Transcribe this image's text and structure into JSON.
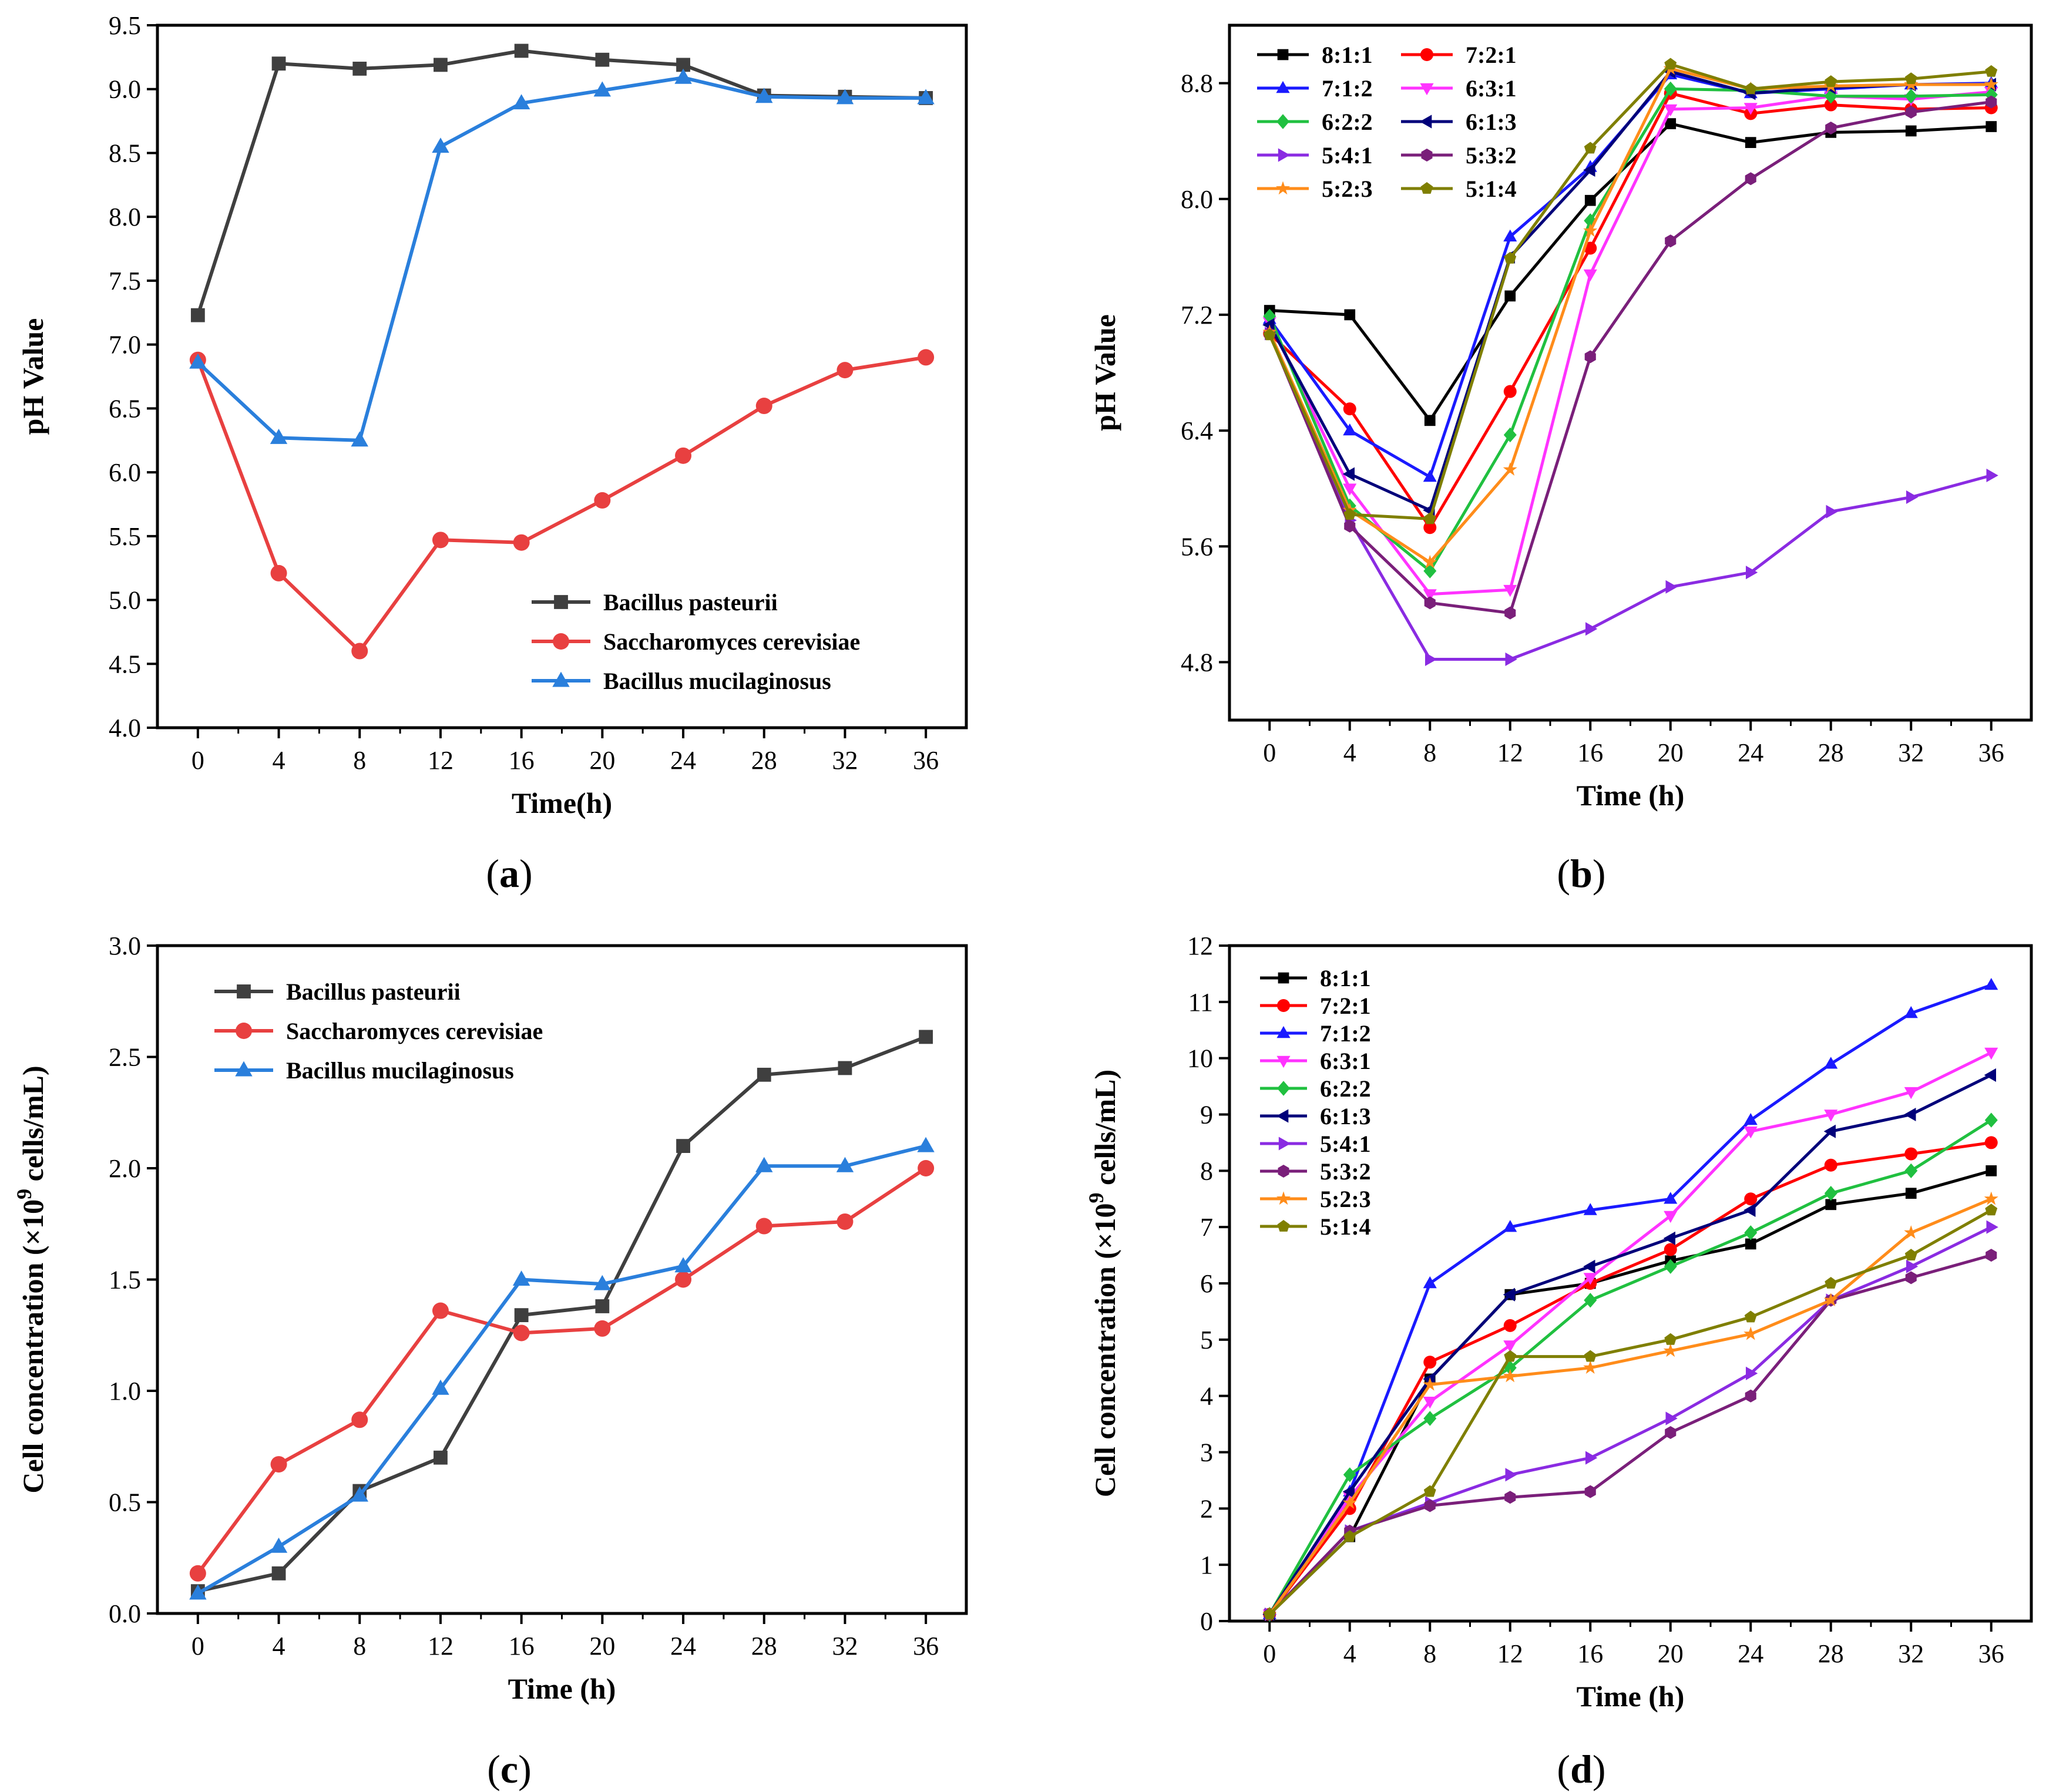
{
  "figure": {
    "panels": [
      {
        "label_prefix": "(",
        "label": "a",
        "label_suffix": ")"
      },
      {
        "label_prefix": "(",
        "label": "b",
        "label_suffix": ")"
      },
      {
        "label_prefix": "(",
        "label": "c",
        "label_suffix": ")"
      },
      {
        "label_prefix": "(",
        "label": "d",
        "label_suffix": ")"
      }
    ]
  },
  "chart_data": [
    {
      "id": "a",
      "type": "line",
      "title": "",
      "xlabel": "Time(h)",
      "ylabel": "pH Value",
      "ylabel_suffix": "",
      "x": [
        0,
        4,
        8,
        12,
        16,
        20,
        24,
        28,
        32,
        36
      ],
      "xticks": [
        "0",
        "4",
        "8",
        "12",
        "16",
        "20",
        "24",
        "28",
        "32",
        "36"
      ],
      "yticks": [
        "4.0",
        "4.5",
        "5.0",
        "5.5",
        "6.0",
        "6.5",
        "7.0",
        "7.5",
        "8.0",
        "8.5",
        "9.0",
        "9.5"
      ],
      "xlim": [
        -2,
        38
      ],
      "ylim": [
        4.0,
        9.5
      ],
      "legend": "bottom-right",
      "series": [
        {
          "name": "Bacillus pasteurii",
          "color": "#3f3f3f",
          "marker": "square",
          "values": [
            7.23,
            9.2,
            9.16,
            9.19,
            9.3,
            9.23,
            9.19,
            8.95,
            8.94,
            8.93
          ]
        },
        {
          "name": "Saccharomyces cerevisiae",
          "color": "#e84040",
          "marker": "circle",
          "values": [
            6.88,
            5.21,
            4.6,
            5.47,
            5.45,
            5.78,
            6.13,
            6.52,
            6.8,
            6.9
          ]
        },
        {
          "name": "Bacillus mucilaginosus",
          "color": "#2a7fdc",
          "marker": "triangle-up",
          "values": [
            6.86,
            6.27,
            6.25,
            8.55,
            8.89,
            8.99,
            9.09,
            8.94,
            8.93,
            8.93
          ]
        }
      ]
    },
    {
      "id": "b",
      "type": "line",
      "title": "",
      "xlabel": "Time (h)",
      "ylabel": "pH Value",
      "ylabel_suffix": "",
      "x": [
        0,
        4,
        8,
        12,
        16,
        20,
        24,
        28,
        32,
        36
      ],
      "xticks": [
        "0",
        "4",
        "8",
        "12",
        "16",
        "20",
        "24",
        "28",
        "32",
        "36"
      ],
      "yticks": [
        "4.8",
        "5.6",
        "6.4",
        "7.2",
        "8.0",
        "8.8"
      ],
      "ytick_values": [
        4.8,
        5.6,
        6.4,
        7.2,
        8.0,
        8.8
      ],
      "xlim": [
        -2,
        38
      ],
      "ylim": [
        4.4,
        9.2
      ],
      "legend": "top-left",
      "series": [
        {
          "name": "8:1:1",
          "color": "#000000",
          "marker": "square",
          "values": [
            7.23,
            7.2,
            6.47,
            7.33,
            7.99,
            8.52,
            8.39,
            8.46,
            8.47,
            8.5
          ]
        },
        {
          "name": "7:2:1",
          "color": "#ff0000",
          "marker": "circle",
          "values": [
            7.07,
            6.55,
            5.73,
            6.67,
            7.66,
            8.73,
            8.59,
            8.65,
            8.62,
            8.63
          ]
        },
        {
          "name": "7:1:2",
          "color": "#1a1aff",
          "marker": "triangle-up",
          "values": [
            7.17,
            6.4,
            6.08,
            7.74,
            8.22,
            8.86,
            8.73,
            8.76,
            8.79,
            8.8
          ]
        },
        {
          "name": "6:3:1",
          "color": "#ff33ff",
          "marker": "triangle-down",
          "values": [
            7.15,
            6.0,
            5.27,
            5.3,
            7.48,
            8.62,
            8.63,
            8.71,
            8.69,
            8.74
          ]
        },
        {
          "name": "6:2:2",
          "color": "#20c040",
          "marker": "diamond",
          "values": [
            7.19,
            5.88,
            5.43,
            6.37,
            7.85,
            8.76,
            8.75,
            8.71,
            8.71,
            8.72
          ]
        },
        {
          "name": "6:1:3",
          "color": "#00007a",
          "marker": "triangle-left",
          "values": [
            7.13,
            6.1,
            5.85,
            7.6,
            8.2,
            8.88,
            8.73,
            8.77,
            8.79,
            8.79
          ]
        },
        {
          "name": "5:4:1",
          "color": "#8a2be2",
          "marker": "triangle-right",
          "values": [
            7.07,
            5.78,
            4.82,
            4.82,
            5.03,
            5.32,
            5.42,
            5.84,
            5.94,
            6.09
          ]
        },
        {
          "name": "5:3:2",
          "color": "#7a1f7a",
          "marker": "hexagon",
          "values": [
            7.07,
            5.74,
            5.21,
            5.14,
            6.91,
            7.71,
            8.14,
            8.49,
            8.6,
            8.67
          ]
        },
        {
          "name": "5:2:3",
          "color": "#ff8c1a",
          "marker": "star",
          "values": [
            7.08,
            5.85,
            5.49,
            6.13,
            7.78,
            8.9,
            8.76,
            8.78,
            8.79,
            8.79
          ]
        },
        {
          "name": "5:1:4",
          "color": "#7f7f00",
          "marker": "pentagon",
          "values": [
            7.06,
            5.82,
            5.79,
            7.59,
            8.35,
            8.93,
            8.76,
            8.81,
            8.83,
            8.88
          ]
        }
      ]
    },
    {
      "id": "c",
      "type": "line",
      "title": "",
      "xlabel": "Time (h)",
      "ylabel": "Cell concentration  (×10",
      "ylabel_sup": "9",
      "ylabel_suffix": " cells/mL)",
      "x": [
        0,
        4,
        8,
        12,
        16,
        20,
        24,
        28,
        32,
        36
      ],
      "xticks": [
        "0",
        "4",
        "8",
        "12",
        "16",
        "20",
        "24",
        "28",
        "32",
        "36"
      ],
      "yticks": [
        "0.0",
        "0.5",
        "1.0",
        "1.5",
        "2.0",
        "2.5",
        "3.0"
      ],
      "xlim": [
        -2,
        38
      ],
      "ylim": [
        0.0,
        3.0
      ],
      "legend": "top-left",
      "series": [
        {
          "name": "Bacillus pasteurii",
          "color": "#3f3f3f",
          "marker": "square",
          "values": [
            0.1,
            0.18,
            0.55,
            0.7,
            1.34,
            1.38,
            2.1,
            2.42,
            2.45,
            2.59
          ]
        },
        {
          "name": "Saccharomyces cerevisiae",
          "color": "#e84040",
          "marker": "circle",
          "values": [
            0.18,
            0.67,
            0.87,
            1.36,
            1.26,
            1.28,
            1.5,
            1.74,
            1.76,
            2.0
          ]
        },
        {
          "name": "Bacillus mucilaginosus",
          "color": "#2a7fdc",
          "marker": "triangle-up",
          "values": [
            0.09,
            0.3,
            0.53,
            1.01,
            1.5,
            1.48,
            1.56,
            2.01,
            2.01,
            2.1
          ]
        }
      ]
    },
    {
      "id": "d",
      "type": "line",
      "title": "",
      "xlabel": "Time (h)",
      "ylabel": "Cell concentration (×10",
      "ylabel_sup": "9",
      "ylabel_suffix": " cells/mL)",
      "x": [
        0,
        4,
        8,
        12,
        16,
        20,
        24,
        28,
        32,
        36
      ],
      "xticks": [
        "0",
        "4",
        "8",
        "12",
        "16",
        "20",
        "24",
        "28",
        "32",
        "36"
      ],
      "yticks": [
        "0",
        "1",
        "2",
        "3",
        "4",
        "5",
        "6",
        "7",
        "8",
        "9",
        "10",
        "11",
        "12"
      ],
      "xlim": [
        -2,
        38
      ],
      "ylim": [
        0,
        12
      ],
      "legend": "top-left",
      "series": [
        {
          "name": "8:1:1",
          "color": "#000000",
          "marker": "square",
          "values": [
            0.12,
            1.5,
            4.3,
            5.8,
            6.0,
            6.4,
            6.7,
            7.4,
            7.6,
            8.0
          ]
        },
        {
          "name": "7:2:1",
          "color": "#ff0000",
          "marker": "circle",
          "values": [
            0.12,
            2.0,
            4.6,
            5.25,
            6.0,
            6.6,
            7.5,
            8.1,
            8.3,
            8.5
          ]
        },
        {
          "name": "7:1:2",
          "color": "#1a1aff",
          "marker": "triangle-up",
          "values": [
            0.12,
            2.3,
            6.0,
            7.0,
            7.3,
            7.5,
            8.9,
            9.9,
            10.8,
            11.3
          ]
        },
        {
          "name": "6:3:1",
          "color": "#ff33ff",
          "marker": "triangle-down",
          "values": [
            0.12,
            2.2,
            3.9,
            4.9,
            6.1,
            7.2,
            8.7,
            9.0,
            9.4,
            10.1
          ]
        },
        {
          "name": "6:2:2",
          "color": "#20c040",
          "marker": "diamond",
          "values": [
            0.12,
            2.6,
            3.6,
            4.5,
            5.7,
            6.3,
            6.9,
            7.6,
            8.0,
            8.9
          ]
        },
        {
          "name": "6:1:3",
          "color": "#00007a",
          "marker": "triangle-left",
          "values": [
            0.12,
            2.3,
            4.3,
            5.8,
            6.3,
            6.8,
            7.3,
            8.7,
            9.0,
            9.7
          ]
        },
        {
          "name": "5:4:1",
          "color": "#8a2be2",
          "marker": "triangle-right",
          "values": [
            0.12,
            1.6,
            2.1,
            2.6,
            2.9,
            3.6,
            4.4,
            5.7,
            6.3,
            7.0
          ]
        },
        {
          "name": "5:3:2",
          "color": "#7a1f7a",
          "marker": "hexagon",
          "values": [
            0.12,
            1.6,
            2.05,
            2.2,
            2.3,
            3.35,
            4.0,
            5.7,
            6.1,
            6.5
          ]
        },
        {
          "name": "5:2:3",
          "color": "#ff8c1a",
          "marker": "star",
          "values": [
            0.12,
            2.1,
            4.2,
            4.35,
            4.5,
            4.8,
            5.1,
            5.7,
            6.9,
            7.5
          ]
        },
        {
          "name": "5:1:4",
          "color": "#7f7f00",
          "marker": "pentagon",
          "values": [
            0.12,
            1.5,
            2.3,
            4.7,
            4.7,
            5.0,
            5.4,
            6.0,
            6.5,
            7.3
          ]
        }
      ]
    }
  ]
}
